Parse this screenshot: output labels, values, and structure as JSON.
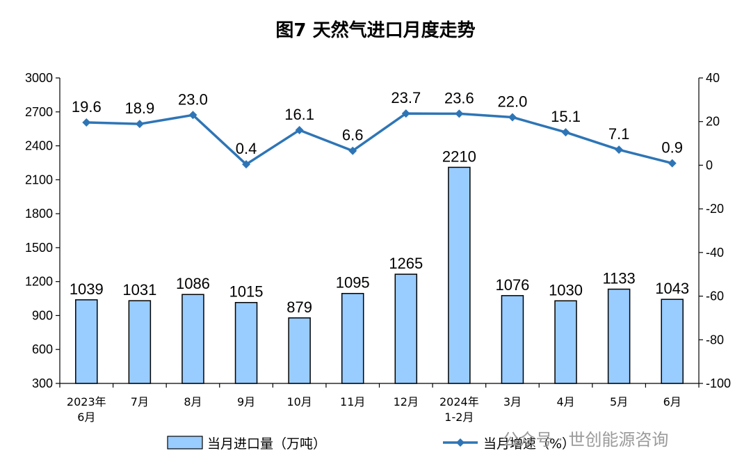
{
  "chart_data": {
    "type": "bar",
    "title": "图7  天然气进口月度走势",
    "categories": [
      [
        "2023年",
        "6月"
      ],
      [
        "7月"
      ],
      [
        "8月"
      ],
      [
        "9月"
      ],
      [
        "10月"
      ],
      [
        "11月"
      ],
      [
        "12月"
      ],
      [
        "2024年",
        "1-2月"
      ],
      [
        "3月"
      ],
      [
        "4月"
      ],
      [
        "5月"
      ],
      [
        "6月"
      ]
    ],
    "series": [
      {
        "name": "当月进口量（万吨）",
        "kind": "bar",
        "axis": "left",
        "color": "#99CCFF",
        "values": [
          1039,
          1031,
          1086,
          1015,
          879,
          1095,
          1265,
          2210,
          1076,
          1030,
          1133,
          1043
        ]
      },
      {
        "name": "当月增速（%）",
        "kind": "line",
        "axis": "right",
        "color": "#2E75B6",
        "values": [
          19.6,
          18.9,
          23.0,
          0.4,
          16.1,
          6.6,
          23.7,
          23.6,
          22.0,
          15.1,
          7.1,
          0.9
        ],
        "labels": [
          "19.6",
          "18.9",
          "23.0",
          "0.4",
          "16.1",
          "6.6",
          "23.7",
          "23.6",
          "22.0",
          "15.1",
          "7.1",
          "0.9"
        ]
      }
    ],
    "y_left": {
      "ylim": [
        300,
        3000
      ],
      "ticks": [
        300,
        600,
        900,
        1200,
        1500,
        1800,
        2100,
        2400,
        2700,
        3000
      ]
    },
    "y_right": {
      "ylim": [
        -100,
        40
      ],
      "ticks": [
        -100,
        -80,
        -60,
        -40,
        -20,
        0,
        20,
        40
      ]
    },
    "grid": false,
    "legend": "bottom"
  },
  "watermark": "公众号 · 世创能源咨询"
}
